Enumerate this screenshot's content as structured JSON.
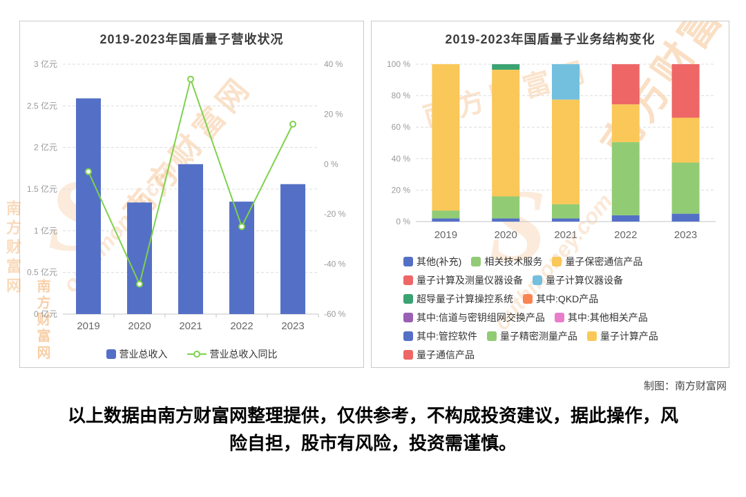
{
  "page": {
    "credit": "制图：南方财富网",
    "disclaimer_line1": "以上数据由南方财富网整理提供，仅供参考，不构成投资建议，据此操作，风",
    "disclaimer_line2": "险自担，股市有风险，投资需谨慎。"
  },
  "watermark": {
    "brand": "南方财富网",
    "brand_short": "南方财富",
    "url": "www.southmoney.com",
    "url_short": "outhmoney.com",
    "swoosh": "S",
    "color": "#f0973f"
  },
  "chart_data": [
    {
      "type": "bar+line",
      "title": "2019-2023年国盾量子营收状况",
      "categories": [
        "2019",
        "2020",
        "2021",
        "2022",
        "2023"
      ],
      "series": [
        {
          "name": "营业总收入",
          "type": "bar",
          "axis": "left",
          "unit": "亿元",
          "color": "#5470c6",
          "values": [
            2.59,
            1.34,
            1.8,
            1.35,
            1.56
          ]
        },
        {
          "name": "营业总收入同比",
          "type": "line",
          "axis": "right",
          "unit": "%",
          "color": "#7fd14b",
          "values": [
            -3,
            -48,
            34,
            -25,
            16
          ]
        }
      ],
      "left_axis": {
        "min": 0,
        "max": 3,
        "ticks": [
          3,
          2.5,
          2,
          1.5,
          1,
          0.5,
          0
        ],
        "labels": [
          "3 亿元",
          "2.5 亿元",
          "2 亿元",
          "1.5 亿元",
          "1 亿元",
          "0.5 亿元",
          "0 亿元"
        ]
      },
      "right_axis": {
        "min": -60,
        "max": 40,
        "ticks": [
          40,
          20,
          0,
          -20,
          -40,
          -60
        ],
        "labels": [
          "40 %",
          "20 %",
          "0 %",
          "-20 %",
          "-40 %",
          "-60 %"
        ]
      },
      "grid": "dashed-horizontal",
      "legend_position": "bottom"
    },
    {
      "type": "stacked-bar-percent",
      "title": "2019-2023年国盾量子业务结构变化",
      "categories": [
        "2019",
        "2020",
        "2021",
        "2022",
        "2023"
      ],
      "y_axis": {
        "min": 0,
        "max": 100,
        "ticks": [
          100,
          80,
          60,
          40,
          20,
          0
        ],
        "labels": [
          "100 %",
          "80 %",
          "60 %",
          "40 %",
          "20 %",
          "0 %"
        ]
      },
      "legend": [
        {
          "name": "其他(补充)",
          "color": "#5470c6"
        },
        {
          "name": "相关技术服务",
          "color": "#91cc75"
        },
        {
          "name": "量子保密通信产品",
          "color": "#fac858"
        },
        {
          "name": "量子计算及测量仪器设备",
          "color": "#ee6666"
        },
        {
          "name": "量子计算仪器设备",
          "color": "#73c0de"
        },
        {
          "name": "超导量子计算操控系统",
          "color": "#3ba272"
        },
        {
          "name": "其中:QKD产品",
          "color": "#fc8452"
        },
        {
          "name": "其中:信道与密钥组网交换产品",
          "color": "#9a60b4"
        },
        {
          "name": "其中:其他相关产品",
          "color": "#ea7ccc"
        },
        {
          "name": "其中:管控软件",
          "color": "#5470c6"
        },
        {
          "name": "量子精密测量产品",
          "color": "#91cc75"
        },
        {
          "name": "量子计算产品",
          "color": "#fac858"
        },
        {
          "name": "量子通信产品",
          "color": "#ee6666"
        }
      ],
      "bars": [
        {
          "category": "2019",
          "segments": [
            [
              "其他(补充)",
              2
            ],
            [
              "相关技术服务",
              5
            ],
            [
              "量子保密通信产品",
              93
            ]
          ]
        },
        {
          "category": "2020",
          "segments": [
            [
              "其他(补充)",
              2
            ],
            [
              "相关技术服务",
              14
            ],
            [
              "量子保密通信产品",
              80.5
            ],
            [
              "超导量子计算操控系统",
              3.5
            ]
          ]
        },
        {
          "category": "2021",
          "segments": [
            [
              "其他(补充)",
              2
            ],
            [
              "相关技术服务",
              9
            ],
            [
              "量子保密通信产品",
              66.5
            ],
            [
              "量子计算仪器设备",
              22.5
            ]
          ]
        },
        {
          "category": "2022",
          "segments": [
            [
              "其他(补充)",
              4
            ],
            [
              "相关技术服务",
              46.5
            ],
            [
              "量子保密通信产品",
              24
            ],
            [
              "量子计算及测量仪器设备",
              25.5
            ]
          ]
        },
        {
          "category": "2023",
          "segments": [
            [
              "其他(补充)",
              5
            ],
            [
              "相关技术服务",
              32.5
            ],
            [
              "量子保密通信产品",
              28.5
            ],
            [
              "量子计算及测量仪器设备",
              34
            ]
          ]
        }
      ],
      "legend_position": "bottom"
    }
  ]
}
